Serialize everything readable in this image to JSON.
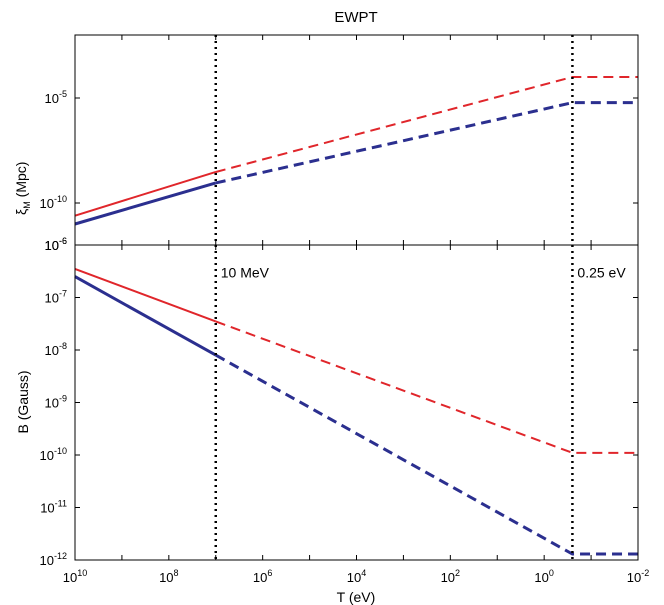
{
  "chart_data": [
    {
      "type": "line",
      "title": "EWPT",
      "ylabel": "ξ_M (Mpc)",
      "ylabel_main": "ξ",
      "ylabel_sub": "M",
      "ylabel_tail": " (Mpc)",
      "xscale": "log",
      "x_reversed": true,
      "xlim": [
        10000000000.0,
        0.01
      ],
      "yscale": "log",
      "ylim": [
        1e-12,
        0.01
      ],
      "ytick_labels": [
        {
          "value": 1e-10,
          "base": "10",
          "exp": "-10"
        },
        {
          "value": 1e-05,
          "base": "10",
          "exp": "-5"
        }
      ],
      "bottom_label": {
        "base": "10",
        "exp": "-6"
      },
      "vlines": [
        {
          "x": 10000000.0,
          "style": "dotted",
          "color": "#000000"
        },
        {
          "x": 0.25,
          "style": "dotted",
          "color": "#000000"
        }
      ],
      "series": [
        {
          "color": "#e0262b",
          "width": 2,
          "solid": [
            [
              10000000000.0,
              2.5e-11
            ],
            [
              10000000.0,
              3e-09
            ]
          ],
          "dashed": [
            [
              10000000.0,
              3e-09
            ],
            [
              0.25,
              0.0001
            ],
            [
              0.01,
              0.0001
            ]
          ]
        },
        {
          "color": "#2b2f8f",
          "width": 3,
          "solid": [
            [
              10000000000.0,
              1e-11
            ],
            [
              10000000.0,
              9e-10
            ]
          ],
          "dashed": [
            [
              10000000.0,
              9e-10
            ],
            [
              0.25,
              6e-06
            ],
            [
              0.01,
              6e-06
            ]
          ]
        }
      ]
    },
    {
      "type": "line",
      "ylabel": "B (Gauss)",
      "xlabel": "T (eV)",
      "xscale": "log",
      "x_reversed": true,
      "xlim": [
        10000000000.0,
        0.01
      ],
      "yscale": "log",
      "ylim": [
        1e-12,
        1e-06
      ],
      "ytick_labels": [
        {
          "value": 1e-12,
          "base": "10",
          "exp": "-12"
        },
        {
          "value": 1e-11,
          "base": "10",
          "exp": "-11"
        },
        {
          "value": 1e-10,
          "base": "10",
          "exp": "-10"
        },
        {
          "value": 1e-09,
          "base": "10",
          "exp": "-9"
        },
        {
          "value": 1e-08,
          "base": "10",
          "exp": "-8"
        },
        {
          "value": 1e-07,
          "base": "10",
          "exp": "-7"
        },
        {
          "value": 1e-06,
          "base": "10",
          "exp": "-6"
        }
      ],
      "xtick_labels": [
        {
          "value": 10000000000.0,
          "base": "10",
          "exp": "10"
        },
        {
          "value": 100000000.0,
          "base": "10",
          "exp": "8"
        },
        {
          "value": 1000000.0,
          "base": "10",
          "exp": "6"
        },
        {
          "value": 10000.0,
          "base": "10",
          "exp": "4"
        },
        {
          "value": 100.0,
          "base": "10",
          "exp": "2"
        },
        {
          "value": 1,
          "base": "10",
          "exp": "0"
        },
        {
          "value": 0.01,
          "base": "10",
          "exp": "-2"
        }
      ],
      "vlines": [
        {
          "x": 10000000.0,
          "style": "dotted",
          "color": "#000000"
        },
        {
          "x": 0.25,
          "style": "dotted",
          "color": "#000000"
        }
      ],
      "annotations": [
        {
          "text": "10 MeV",
          "x": 10000000.0,
          "y": 3e-07
        },
        {
          "text": "0.25 eV",
          "x": 0.25,
          "y": 3e-07
        }
      ],
      "series": [
        {
          "color": "#e0262b",
          "width": 2,
          "solid": [
            [
              10000000000.0,
              3.5e-07
            ],
            [
              10000000.0,
              3.5e-08
            ]
          ],
          "dashed": [
            [
              10000000.0,
              3.5e-08
            ],
            [
              0.25,
              1.1e-10
            ],
            [
              0.01,
              1.1e-10
            ]
          ]
        },
        {
          "color": "#2b2f8f",
          "width": 3,
          "solid": [
            [
              10000000000.0,
              2.5e-07
            ],
            [
              10000000.0,
              8e-09
            ]
          ],
          "dashed": [
            [
              10000000.0,
              8e-09
            ],
            [
              0.25,
              1.3e-12
            ],
            [
              0.01,
              1.3e-12
            ]
          ]
        }
      ]
    }
  ]
}
